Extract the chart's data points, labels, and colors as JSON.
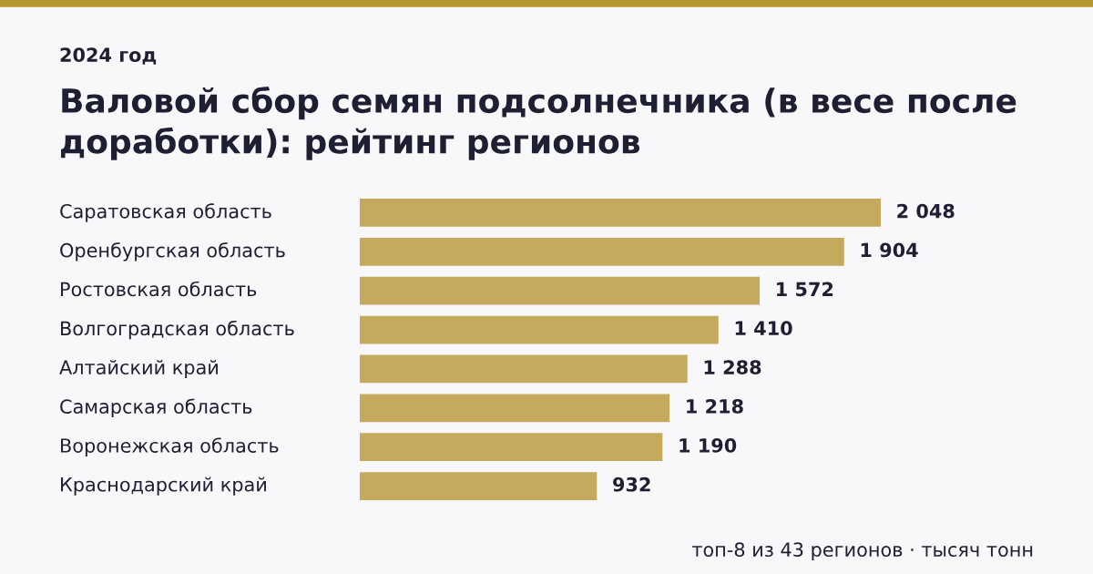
{
  "chart_data": {
    "type": "bar",
    "orientation": "horizontal",
    "subtitle": "2024 год",
    "title": "Валовой сбор семян подсолнечника (в весе после доработки): рейтинг регионов",
    "categories": [
      "Саратовская область",
      "Оренбургская область",
      "Ростовская область",
      "Волгоградская область",
      "Алтайский край",
      "Самарская область",
      "Воронежская область",
      "Краснодарский край"
    ],
    "values": [
      2048,
      1904,
      1572,
      1410,
      1288,
      1218,
      1190,
      932
    ],
    "value_labels": [
      "2 048",
      "1 904",
      "1 572",
      "1 410",
      "1 288",
      "1 218",
      "1 190",
      "932"
    ],
    "color": "#c5a95c",
    "tick_labels": false,
    "annotations": [
      "топ-8 из 43 регионов · тысяч тонн"
    ]
  }
}
